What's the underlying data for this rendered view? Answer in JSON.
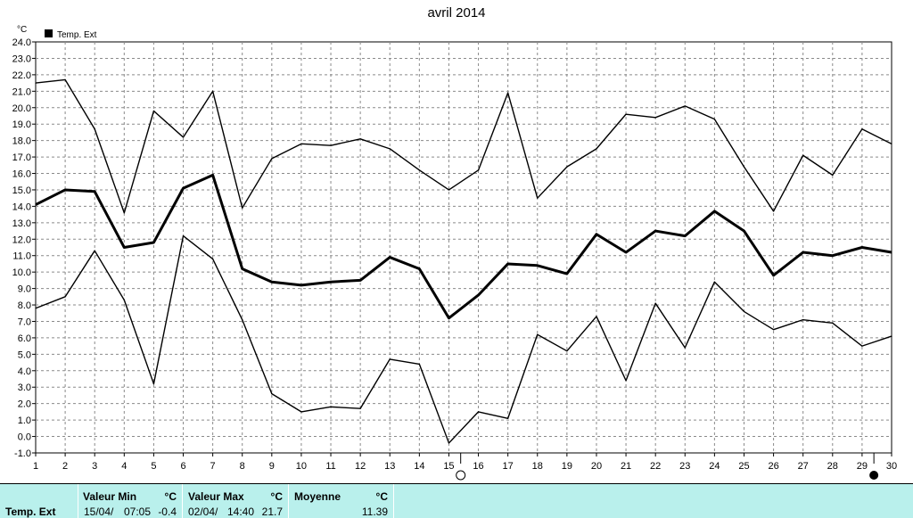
{
  "chart_data": {
    "type": "line",
    "title": "avril 2014",
    "unit_label": "°C",
    "legend": [
      "Temp. Ext"
    ],
    "legend_position": "top-left",
    "x": [
      1,
      2,
      3,
      4,
      5,
      6,
      7,
      8,
      9,
      10,
      11,
      12,
      13,
      14,
      15,
      16,
      17,
      18,
      19,
      20,
      21,
      22,
      23,
      24,
      25,
      26,
      27,
      28,
      29,
      30
    ],
    "xlim": [
      1,
      30
    ],
    "ylim": [
      -1.0,
      24.0
    ],
    "y_tick_step": 1.0,
    "grid": true,
    "series": [
      {
        "values": [
          21.5,
          21.7,
          18.7,
          13.6,
          19.8,
          18.2,
          21.0,
          13.9,
          16.9,
          17.8,
          17.7,
          18.1,
          17.5,
          16.2,
          15.0,
          16.2,
          20.9,
          14.5,
          16.4,
          17.5,
          19.6,
          19.4,
          20.1,
          19.3,
          16.4,
          13.7,
          17.1,
          15.9,
          18.7,
          17.8
        ],
        "stroke_width": 1.4
      },
      {
        "values": [
          14.1,
          15.0,
          14.9,
          11.5,
          11.8,
          15.1,
          15.9,
          10.2,
          9.4,
          9.2,
          9.4,
          9.5,
          10.9,
          10.2,
          7.2,
          8.6,
          10.5,
          10.4,
          9.9,
          12.3,
          11.2,
          12.5,
          12.2,
          13.7,
          12.5,
          9.8,
          11.2,
          11.0,
          11.5,
          11.2
        ],
        "stroke_width": 3
      },
      {
        "values": [
          7.8,
          8.5,
          11.3,
          8.3,
          3.2,
          12.2,
          10.8,
          7.1,
          2.6,
          1.5,
          1.8,
          1.7,
          4.7,
          4.4,
          -0.4,
          1.5,
          1.1,
          6.2,
          5.2,
          7.3,
          3.4,
          8.1,
          5.4,
          9.4,
          7.6,
          6.5,
          7.1,
          6.9,
          5.5,
          6.1
        ],
        "stroke_width": 1.4
      }
    ],
    "markers": [
      {
        "x": 15,
        "type": "hollow-circle"
      },
      {
        "x": 29,
        "type": "filled-circle"
      }
    ]
  },
  "footer": {
    "row_label": "Temp. Ext",
    "min": {
      "label": "Valeur Min",
      "unit": "°C",
      "date": "15/04/",
      "time": "07:05",
      "value": "-0.4"
    },
    "max": {
      "label": "Valeur Max",
      "unit": "°C",
      "date": "02/04/",
      "time": "14:40",
      "value": "21.7"
    },
    "avg": {
      "label": "Moyenne",
      "unit": "°C",
      "value": "11.39"
    }
  }
}
